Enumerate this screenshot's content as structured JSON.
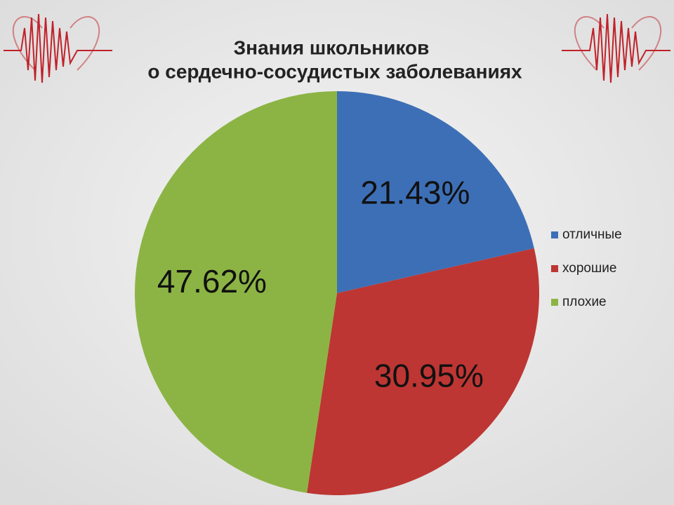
{
  "chart_data": {
    "type": "pie",
    "title": [
      "Знания школьников",
      "о сердечно-сосудистых заболеваниях"
    ],
    "categories": [
      "отличные",
      "хорошие",
      "плохие"
    ],
    "values": [
      21.43,
      30.95,
      47.62
    ],
    "value_labels": [
      "21.43%",
      "30.95%",
      "47.62%"
    ],
    "colors": [
      "#3d6fb6",
      "#bd3633",
      "#8cb444"
    ],
    "legend": "right"
  }
}
